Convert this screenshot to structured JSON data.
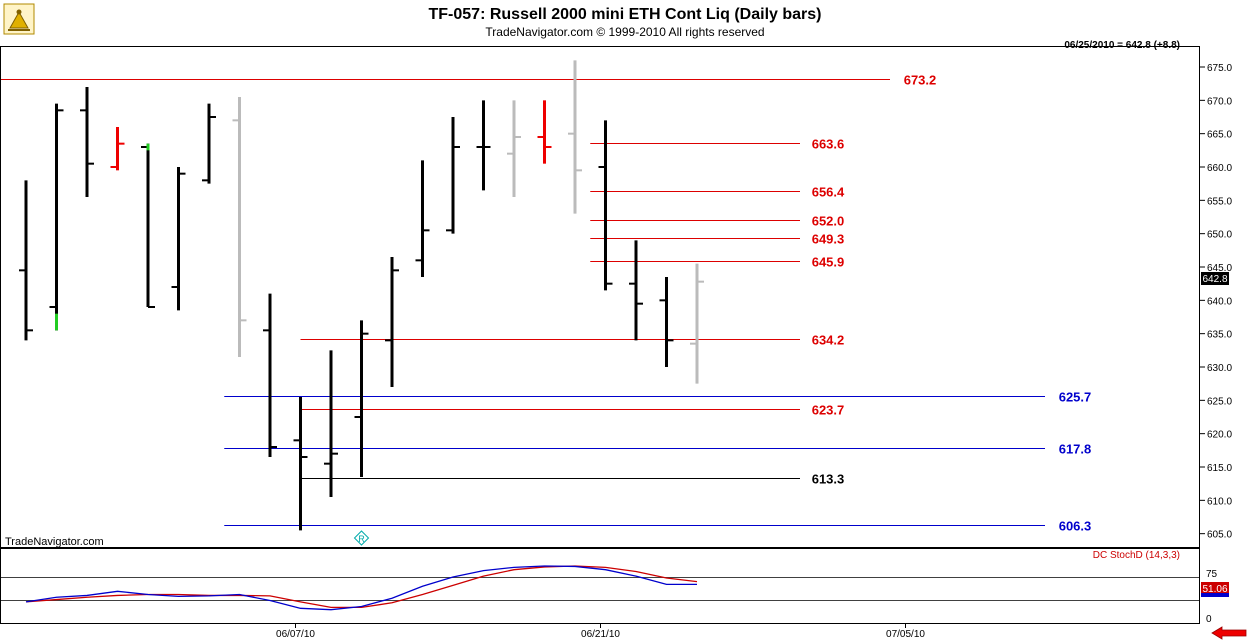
{
  "header": {
    "title": "TF-057:  Russell 2000 mini ETH Cont Liq  (Daily bars)",
    "subtitle": "TradeNavigator.com © 1999-2010 All rights reserved",
    "last_info": "06/25/2010 = 642.8 (+8.8)",
    "watermark": "TradeNavigator.com"
  },
  "chart_data": {
    "type": "ohlc",
    "ylim": [
      603,
      678
    ],
    "y_ticks": [
      605,
      610,
      615,
      620,
      625,
      630,
      635,
      640,
      645,
      650,
      655,
      660,
      665,
      670,
      675
    ],
    "x_ticks": [
      {
        "label": "06/07/10",
        "bar": 9
      },
      {
        "label": "06/21/10",
        "bar": 19
      },
      {
        "label": "07/05/10",
        "bar": 29
      }
    ],
    "current_price_label": "642.8",
    "bars": [
      {
        "o": 644.5,
        "h": 658.0,
        "l": 634.0,
        "c": 635.5,
        "color": "#000000"
      },
      {
        "o": 639.0,
        "h": 669.5,
        "l": 635.5,
        "c": 668.5,
        "color": "#000000",
        "low_color": "#22cc22"
      },
      {
        "o": 668.5,
        "h": 672.0,
        "l": 655.5,
        "c": 660.5,
        "color": "#000000"
      },
      {
        "o": 660.0,
        "h": 666.0,
        "l": 659.5,
        "c": 663.5,
        "color": "#ee0000"
      },
      {
        "o": 663.0,
        "h": 663.5,
        "l": 639.0,
        "c": 639.0,
        "color": "#000000",
        "high_color": "#22cc22"
      },
      {
        "o": 642.0,
        "h": 660.0,
        "l": 638.5,
        "c": 659.0,
        "color": "#000000"
      },
      {
        "o": 658.0,
        "h": 669.5,
        "l": 657.5,
        "c": 667.5,
        "color": "#000000"
      },
      {
        "o": 667.0,
        "h": 670.5,
        "l": 631.5,
        "c": 637.0,
        "color": "#bbbbbb"
      },
      {
        "o": 635.5,
        "h": 641.0,
        "l": 616.5,
        "c": 618.0,
        "color": "#000000"
      },
      {
        "o": 619.0,
        "h": 625.5,
        "l": 605.5,
        "c": 616.5,
        "color": "#000000"
      },
      {
        "o": 615.5,
        "h": 632.5,
        "l": 610.5,
        "c": 617.0,
        "color": "#000000"
      },
      {
        "o": 622.5,
        "h": 637.0,
        "l": 613.5,
        "c": 635.0,
        "color": "#000000"
      },
      {
        "o": 634.0,
        "h": 646.5,
        "l": 627.0,
        "c": 644.5,
        "color": "#000000"
      },
      {
        "o": 646.0,
        "h": 661.0,
        "l": 643.5,
        "c": 650.5,
        "color": "#000000"
      },
      {
        "o": 650.5,
        "h": 667.5,
        "l": 650.0,
        "c": 663.0,
        "color": "#000000"
      },
      {
        "o": 663.0,
        "h": 670.0,
        "l": 656.5,
        "c": 663.0,
        "color": "#000000"
      },
      {
        "o": 662.0,
        "h": 670.0,
        "l": 655.5,
        "c": 664.5,
        "color": "#bbbbbb"
      },
      {
        "o": 664.5,
        "h": 670.0,
        "l": 660.5,
        "c": 663.0,
        "color": "#ee0000"
      },
      {
        "o": 665.0,
        "h": 676.0,
        "l": 653.0,
        "c": 659.5,
        "color": "#bbbbbb"
      },
      {
        "o": 660.0,
        "h": 667.0,
        "l": 641.5,
        "c": 642.5,
        "color": "#000000"
      },
      {
        "o": 642.5,
        "h": 649.0,
        "l": 634.0,
        "c": 639.5,
        "color": "#000000"
      },
      {
        "o": 640.0,
        "h": 643.5,
        "l": 630.0,
        "c": 634.0,
        "color": "#000000"
      },
      {
        "o": 633.5,
        "h": 645.5,
        "l": 627.5,
        "c": 642.8,
        "color": "#bbbbbb"
      }
    ],
    "levels": [
      {
        "value": 673.2,
        "label": "673.2",
        "color": "#dd0000",
        "start_bar": -1,
        "label_pos": "mid"
      },
      {
        "value": 663.6,
        "label": "663.6",
        "color": "#dd0000",
        "start_bar": 18.5,
        "label_pos": "near"
      },
      {
        "value": 656.4,
        "label": "656.4",
        "color": "#dd0000",
        "start_bar": 18.5,
        "label_pos": "near"
      },
      {
        "value": 652.0,
        "label": "652.0",
        "color": "#dd0000",
        "start_bar": 18.5,
        "label_pos": "near"
      },
      {
        "value": 649.3,
        "label": "649.3",
        "color": "#dd0000",
        "start_bar": 18.5,
        "label_pos": "near"
      },
      {
        "value": 645.9,
        "label": "645.9",
        "color": "#dd0000",
        "start_bar": 18.5,
        "label_pos": "near"
      },
      {
        "value": 634.2,
        "label": "634.2",
        "color": "#dd0000",
        "start_bar": 9,
        "label_pos": "near"
      },
      {
        "value": 625.7,
        "label": "625.7",
        "color": "#0000cc",
        "start_bar": 6.5,
        "label_pos": "far"
      },
      {
        "value": 623.7,
        "label": "623.7",
        "color": "#dd0000",
        "start_bar": 9,
        "label_pos": "near"
      },
      {
        "value": 617.8,
        "label": "617.8",
        "color": "#0000cc",
        "start_bar": 6.5,
        "label_pos": "far"
      },
      {
        "value": 613.3,
        "label": "613.3",
        "color": "#000000",
        "start_bar": 9,
        "label_pos": "near"
      },
      {
        "value": 606.3,
        "label": "606.3",
        "color": "#0000cc",
        "start_bar": 6.5,
        "label_pos": "far"
      }
    ],
    "marker": {
      "bar": 11,
      "symbol": "R",
      "color": "#00aaaa"
    }
  },
  "indicator": {
    "name": "DC StochD (14,3,3)",
    "level_label": "75",
    "value_label": "51.06",
    "blue_color": "#0000cc",
    "red_color": "#cc0000",
    "blue_line": [
      22,
      32,
      36,
      45,
      38,
      34,
      35,
      38,
      25,
      8,
      5,
      12,
      30,
      56,
      76,
      90,
      97,
      100,
      99,
      92,
      78,
      60,
      60
    ],
    "red_line": [
      22,
      27,
      32,
      36,
      38,
      38,
      36,
      36,
      35,
      22,
      10,
      10,
      20,
      38,
      58,
      78,
      92,
      98,
      100,
      97,
      88,
      74,
      66
    ]
  },
  "footer": {
    "arrow_icon": "red-left-arrow-icon"
  }
}
